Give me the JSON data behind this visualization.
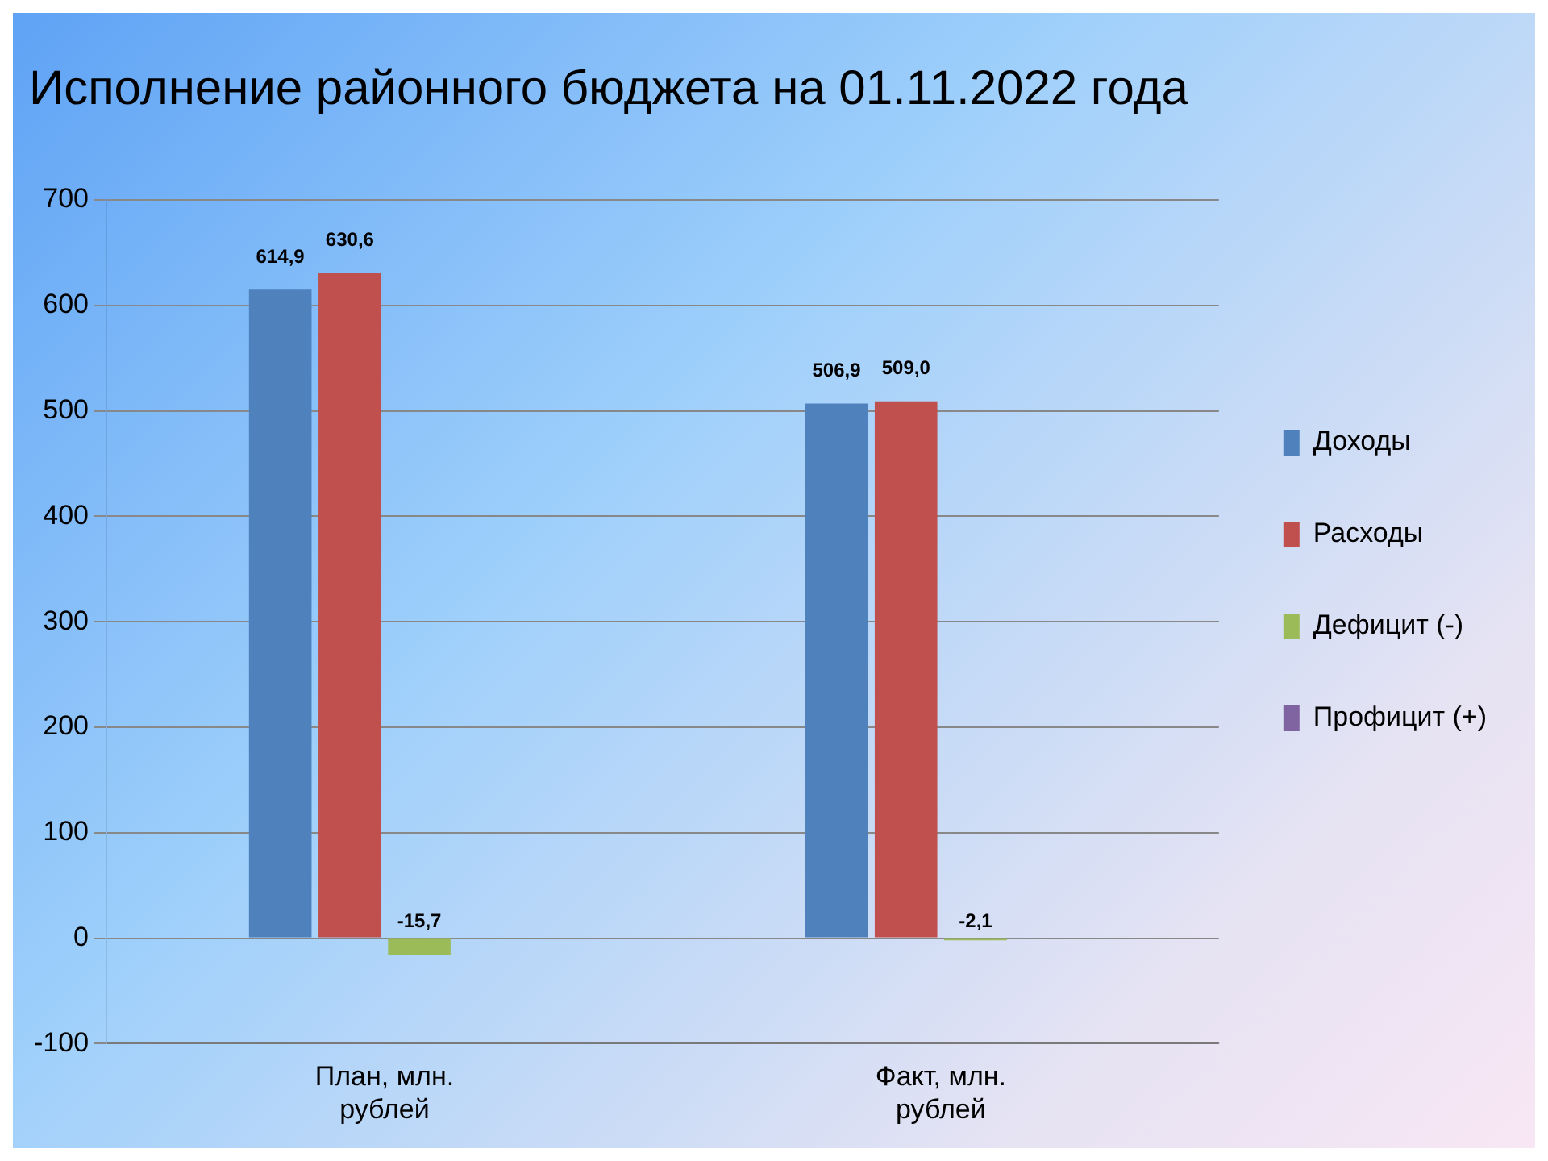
{
  "chart_data": {
    "type": "bar",
    "title": "Исполнение районного бюджета на 01.11.2022 года",
    "categories": [
      "План, млн. рублей",
      "Факт, млн. рублей"
    ],
    "series": [
      {
        "name": "Доходы",
        "color": "#4f81bd",
        "values": [
          614.9,
          506.9
        ],
        "value_labels": [
          "614,9",
          "506,9"
        ]
      },
      {
        "name": "Расходы",
        "color": "#c0504d",
        "values": [
          630.6,
          509.0
        ],
        "value_labels": [
          "630,6",
          "509,0"
        ]
      },
      {
        "name": "Дефицит (-)",
        "color": "#9bbb59",
        "values": [
          -15.7,
          -2.1
        ],
        "value_labels": [
          "-15,7",
          "-2,1"
        ]
      },
      {
        "name": "Профицит (+)",
        "color": "#8064a2",
        "values": [
          null,
          null
        ]
      }
    ],
    "ylim": [
      -100,
      700
    ],
    "yticks": [
      -100,
      0,
      100,
      200,
      300,
      400,
      500,
      600,
      700
    ],
    "grid": "y",
    "legend": "right"
  }
}
